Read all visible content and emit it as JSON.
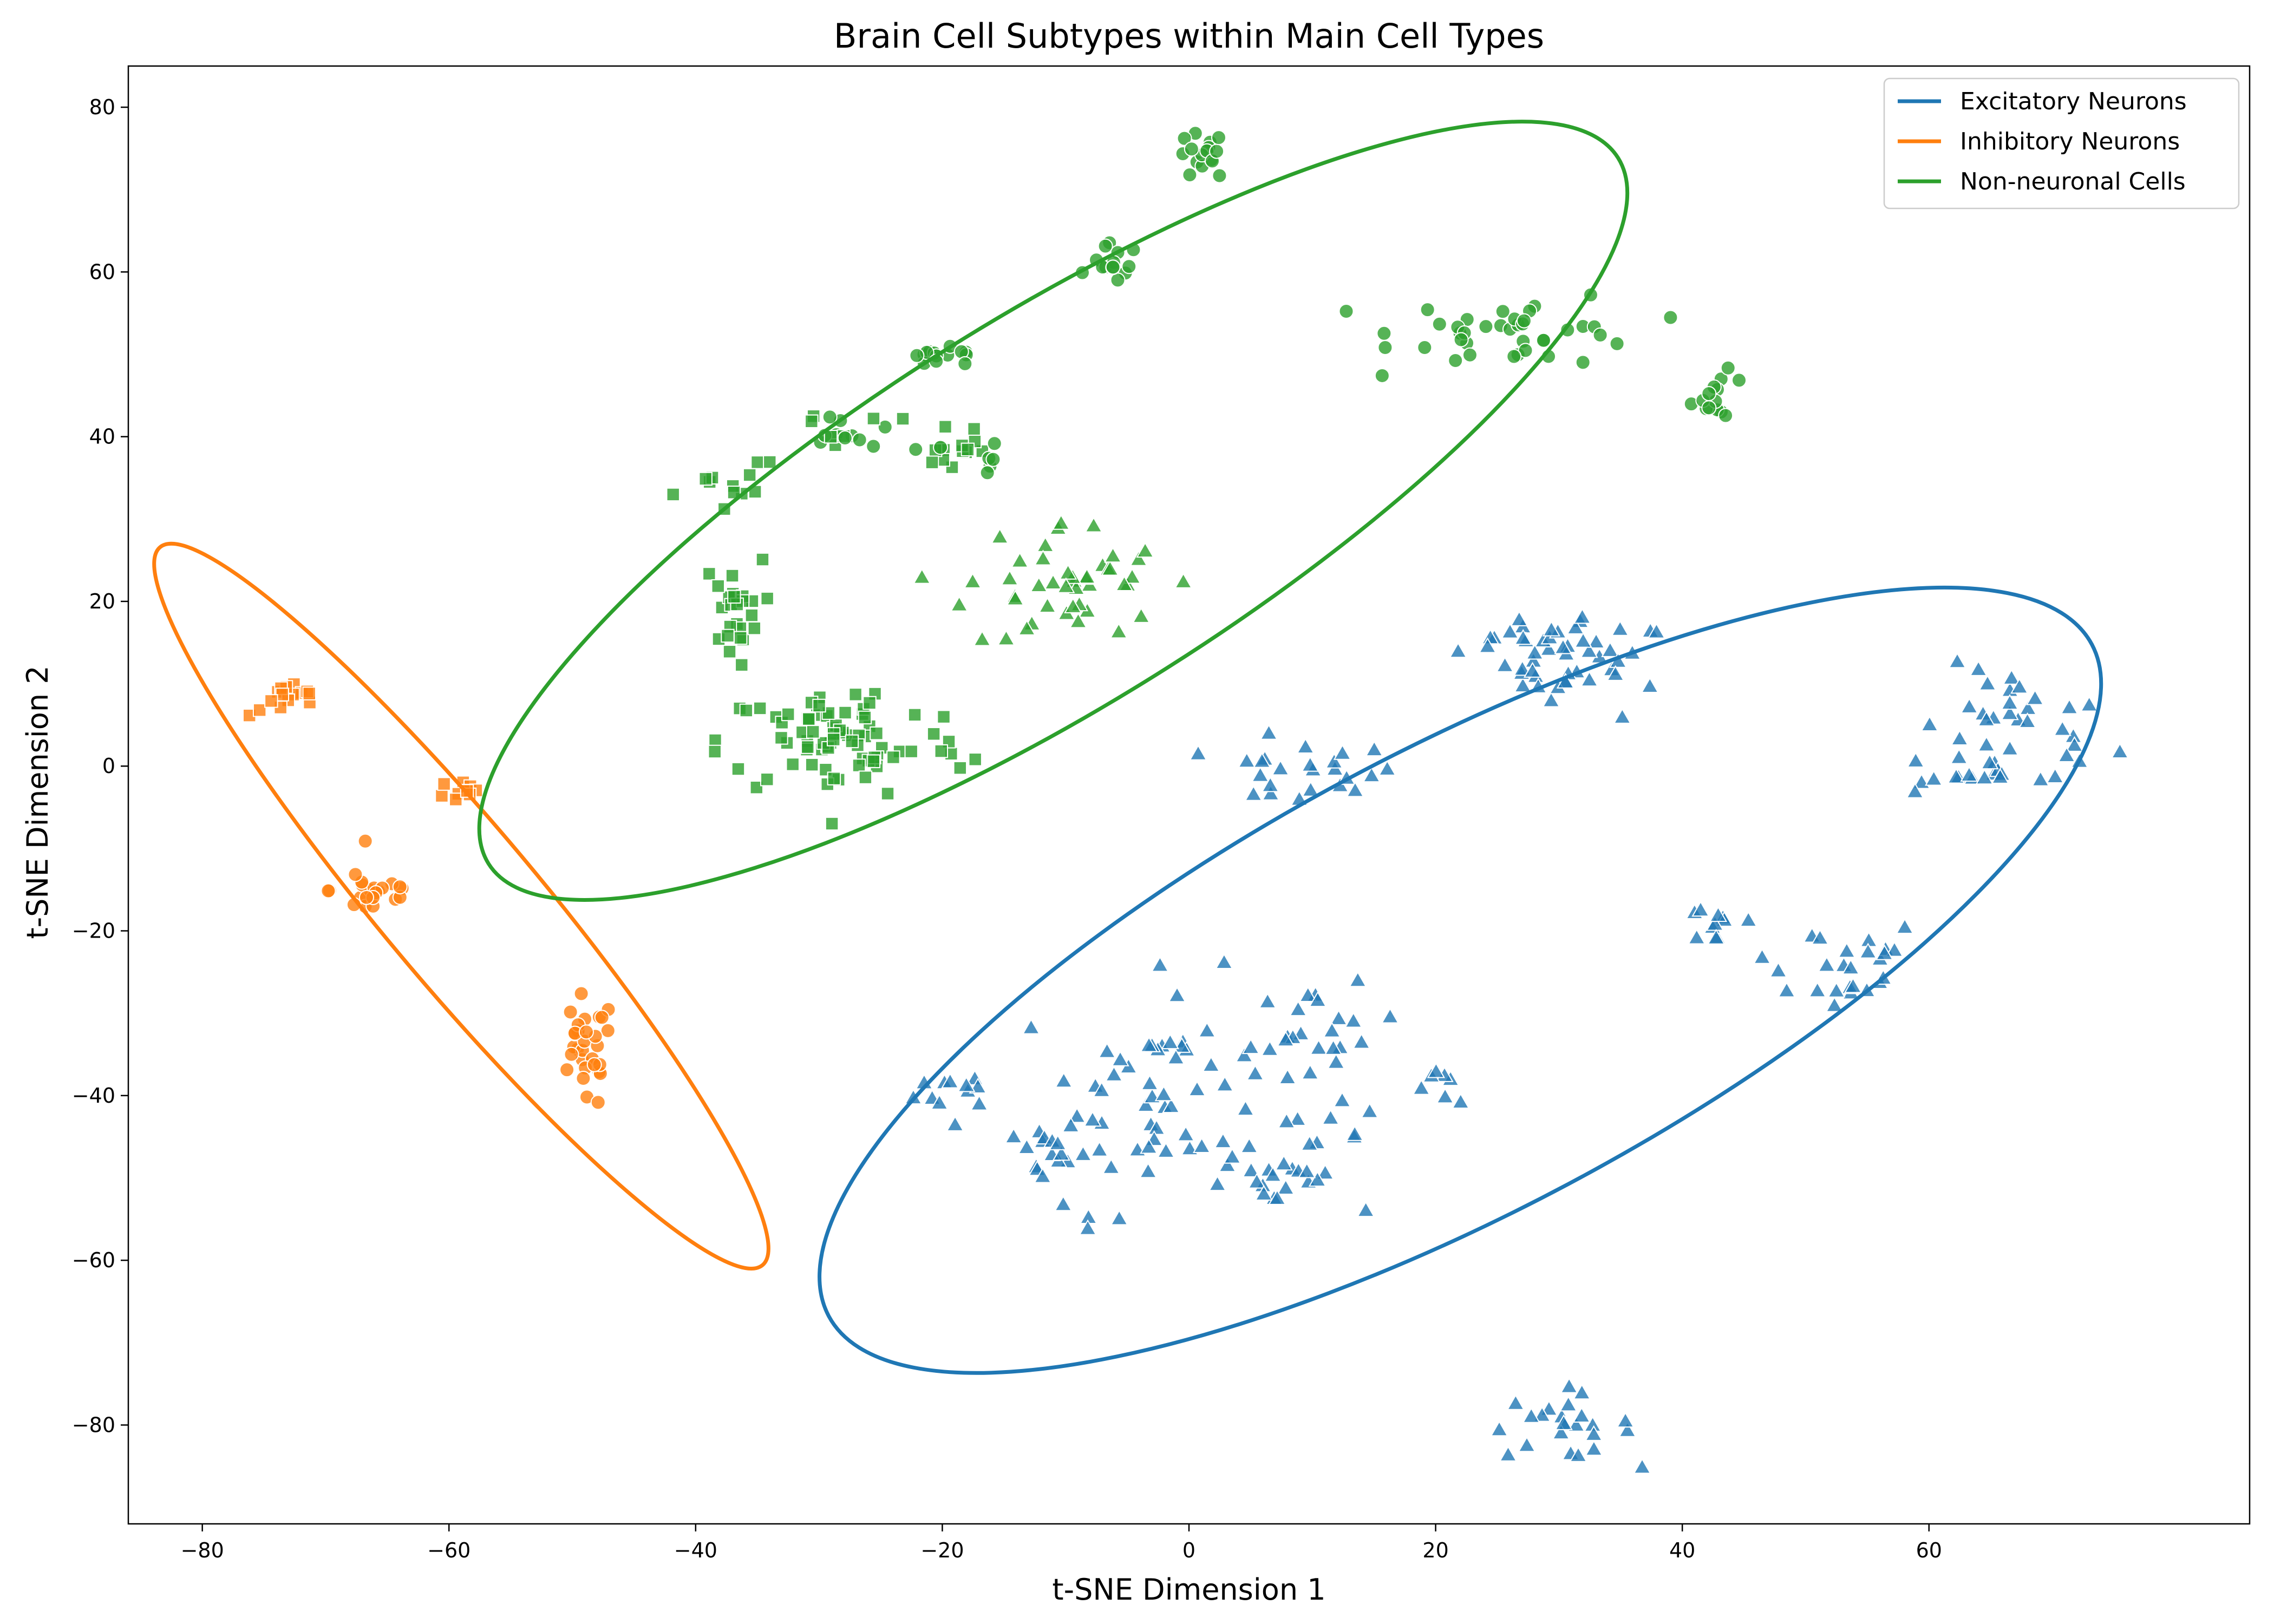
{
  "chart_data": {
    "type": "scatter",
    "title": "Brain Cell Subtypes within Main Cell Types",
    "xlabel": "t-SNE Dimension 1",
    "ylabel": "t-SNE Dimension 2",
    "xlim": [
      -86,
      86
    ],
    "ylim": [
      -92,
      85
    ],
    "xticks": [
      -80,
      -60,
      -40,
      -20,
      0,
      20,
      40,
      60
    ],
    "yticks": [
      -80,
      -60,
      -40,
      -20,
      0,
      20,
      40,
      60,
      80
    ],
    "grid": false,
    "legend_position": "top-right",
    "series": [
      {
        "name": "Excitatory Neurons",
        "color": "#1f77b4",
        "marker": "triangle",
        "ellipse": {
          "center": [
            22,
            -26
          ],
          "width": 116,
          "height": 56,
          "angle_deg": 28
        },
        "clusters": [
          {
            "center": [
              28,
              15
            ],
            "spread": [
              3,
              2
            ],
            "count": 22
          },
          {
            "center": [
              33,
              12
            ],
            "spread": [
              3,
              3
            ],
            "count": 28
          },
          {
            "center": [
              9,
              -1
            ],
            "spread": [
              4,
              2
            ],
            "count": 24
          },
          {
            "center": [
              67,
              4
            ],
            "spread": [
              4,
              4
            ],
            "count": 36
          },
          {
            "center": [
              62,
              -1
            ],
            "spread": [
              2,
              1.5
            ],
            "count": 10
          },
          {
            "center": [
              52,
              -24
            ],
            "spread": [
              4,
              3
            ],
            "count": 26
          },
          {
            "center": [
              43,
              -19
            ],
            "spread": [
              2,
              1.5
            ],
            "count": 10
          },
          {
            "center": [
              -18,
              -39
            ],
            "spread": [
              2,
              1.5
            ],
            "count": 10
          },
          {
            "center": [
              -12,
              -47
            ],
            "spread": [
              2,
              3
            ],
            "count": 14
          },
          {
            "center": [
              -2,
              -40
            ],
            "spread": [
              6,
              7
            ],
            "count": 70
          },
          {
            "center": [
              11,
              -33
            ],
            "spread": [
              3,
              3
            ],
            "count": 20
          },
          {
            "center": [
              7,
              -50
            ],
            "spread": [
              2,
              2
            ],
            "count": 12
          },
          {
            "center": [
              11,
              -45
            ],
            "spread": [
              1.5,
              2
            ],
            "count": 8
          },
          {
            "center": [
              21,
              -39
            ],
            "spread": [
              1.5,
              1
            ],
            "count": 7
          },
          {
            "center": [
              30,
              -80
            ],
            "spread": [
              3,
              2
            ],
            "count": 24
          }
        ]
      },
      {
        "name": "Inhibitory Neurons",
        "color": "#ff7f0e",
        "marker": "mixed",
        "ellipse": {
          "center": [
            -59,
            -17
          ],
          "width": 76,
          "height": 19,
          "angle_deg": -50
        },
        "clusters": [
          {
            "center": [
              -73,
              8
            ],
            "spread": [
              1.6,
              1.0
            ],
            "count": 16,
            "marker": "square"
          },
          {
            "center": [
              -59,
              -3
            ],
            "spread": [
              1.0,
              1.0
            ],
            "count": 10,
            "marker": "square"
          },
          {
            "center": [
              -66,
              -15
            ],
            "spread": [
              1.8,
              1.8
            ],
            "count": 22,
            "marker": "circle"
          },
          {
            "center": [
              -49,
              -35
            ],
            "spread": [
              1.2,
              3.5
            ],
            "count": 30,
            "marker": "circle"
          }
        ]
      },
      {
        "name": "Non-neuronal Cells",
        "color": "#2ca02c",
        "marker": "mixed",
        "ellipse": {
          "center": [
            -11,
            31
          ],
          "width": 108,
          "height": 47,
          "angle_deg": 32
        },
        "clusters": [
          {
            "center": [
              1,
              74
            ],
            "spread": [
              1.0,
              1.5
            ],
            "count": 16,
            "marker": "circle"
          },
          {
            "center": [
              -6,
              61
            ],
            "spread": [
              1.0,
              1.2
            ],
            "count": 14,
            "marker": "circle"
          },
          {
            "center": [
              -20,
              49.5
            ],
            "spread": [
              2.0,
              0.6
            ],
            "count": 14,
            "marker": "circle"
          },
          {
            "center": [
              27,
              53
            ],
            "spread": [
              5,
              2.2
            ],
            "count": 40,
            "marker": "circle"
          },
          {
            "center": [
              43,
              45
            ],
            "spread": [
              1.2,
              1.4
            ],
            "count": 14,
            "marker": "circle"
          },
          {
            "center": [
              -30,
              40
            ],
            "spread": [
              3,
              1.5
            ],
            "count": 18,
            "marker": "mixed"
          },
          {
            "center": [
              -37,
              34
            ],
            "spread": [
              1.2,
              1.2
            ],
            "count": 10,
            "marker": "square"
          },
          {
            "center": [
              -19,
              38
            ],
            "spread": [
              2.5,
              2.5
            ],
            "count": 22,
            "marker": "mixed"
          },
          {
            "center": [
              -37,
              19
            ],
            "spread": [
              1.2,
              3
            ],
            "count": 26,
            "marker": "square"
          },
          {
            "center": [
              -28,
              3
            ],
            "spread": [
              5,
              3.5
            ],
            "count": 80,
            "marker": "square"
          },
          {
            "center": [
              -10,
              22
            ],
            "spread": [
              4,
              4
            ],
            "count": 45,
            "marker": "triangle"
          }
        ]
      }
    ]
  }
}
